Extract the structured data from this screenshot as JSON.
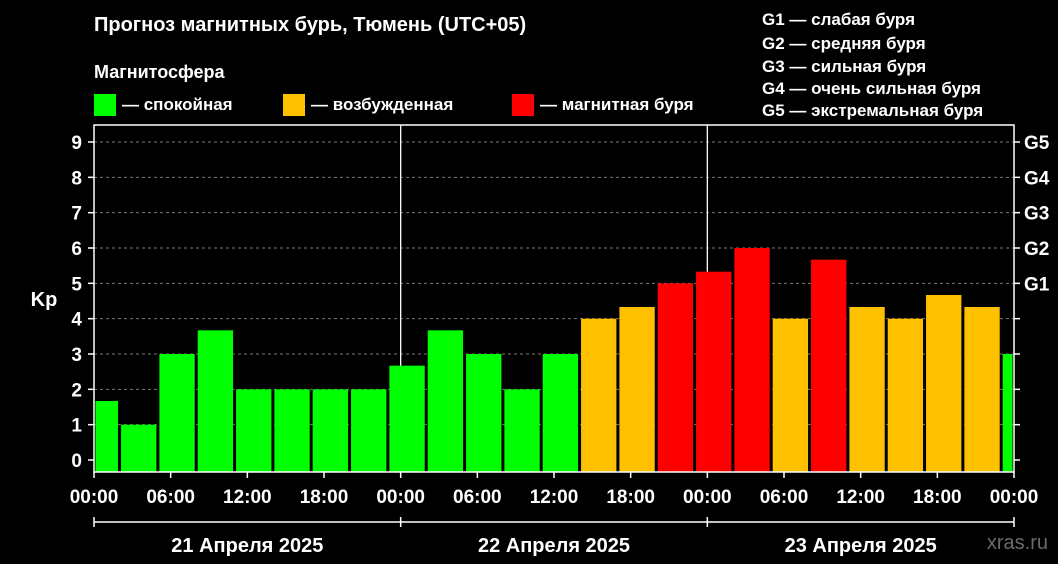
{
  "title": "Прогноз магнитных бурь, Тюмень (UTC+05)",
  "legend": {
    "heading": "Магнитосфера",
    "items": [
      {
        "label": "— спокойная",
        "color": "#00ff00"
      },
      {
        "label": "— возбужденная",
        "color": "#ffc000"
      },
      {
        "label": "— магнитная буря",
        "color": "#ff0000"
      }
    ]
  },
  "g_levels": [
    "G1 — слабая буря",
    "G2 — средняя буря",
    "G3 — сильная буря",
    "G4 — очень сильная буря",
    "G5 — экстремальная буря"
  ],
  "watermark": "xras.ru",
  "chart_data": {
    "type": "bar",
    "ylabel": "Kp",
    "ylim": [
      0,
      9
    ],
    "yticks": [
      0,
      1,
      2,
      3,
      4,
      5,
      6,
      7,
      8,
      9
    ],
    "right_ticks": [
      {
        "value": 5,
        "label": "G1"
      },
      {
        "value": 6,
        "label": "G2"
      },
      {
        "value": 7,
        "label": "G3"
      },
      {
        "value": 8,
        "label": "G4"
      },
      {
        "value": 9,
        "label": "G5"
      }
    ],
    "xticks": [
      "00:00",
      "06:00",
      "12:00",
      "18:00",
      "00:00",
      "06:00",
      "12:00",
      "18:00",
      "00:00",
      "06:00",
      "12:00",
      "18:00",
      "00:00"
    ],
    "days": [
      "21 Апреля 2025",
      "22 Апреля 2025",
      "23 Апреля 2025"
    ],
    "hours_total": 72,
    "grid": true,
    "colors": {
      "quiet": "#00ff00",
      "active": "#ffc000",
      "storm": "#ff0000"
    },
    "bars": [
      {
        "start": 0,
        "end": 2,
        "kp": 1.67,
        "level": "quiet"
      },
      {
        "start": 2,
        "end": 5,
        "kp": 1.0,
        "level": "quiet"
      },
      {
        "start": 5,
        "end": 8,
        "kp": 3.0,
        "level": "quiet"
      },
      {
        "start": 8,
        "end": 11,
        "kp": 3.67,
        "level": "quiet"
      },
      {
        "start": 11,
        "end": 14,
        "kp": 2.0,
        "level": "quiet"
      },
      {
        "start": 14,
        "end": 17,
        "kp": 2.0,
        "level": "quiet"
      },
      {
        "start": 17,
        "end": 20,
        "kp": 2.0,
        "level": "quiet"
      },
      {
        "start": 20,
        "end": 23,
        "kp": 2.0,
        "level": "quiet"
      },
      {
        "start": 23,
        "end": 26,
        "kp": 2.67,
        "level": "quiet"
      },
      {
        "start": 26,
        "end": 29,
        "kp": 3.67,
        "level": "quiet"
      },
      {
        "start": 29,
        "end": 32,
        "kp": 3.0,
        "level": "quiet"
      },
      {
        "start": 32,
        "end": 35,
        "kp": 2.0,
        "level": "quiet"
      },
      {
        "start": 35,
        "end": 38,
        "kp": 3.0,
        "level": "quiet"
      },
      {
        "start": 38,
        "end": 41,
        "kp": 4.0,
        "level": "active"
      },
      {
        "start": 41,
        "end": 44,
        "kp": 4.33,
        "level": "active"
      },
      {
        "start": 44,
        "end": 47,
        "kp": 5.0,
        "level": "storm"
      },
      {
        "start": 47,
        "end": 50,
        "kp": 5.33,
        "level": "storm"
      },
      {
        "start": 50,
        "end": 53,
        "kp": 6.0,
        "level": "storm"
      },
      {
        "start": 53,
        "end": 56,
        "kp": 4.0,
        "level": "active"
      },
      {
        "start": 56,
        "end": 59,
        "kp": 5.67,
        "level": "storm"
      },
      {
        "start": 59,
        "end": 62,
        "kp": 4.33,
        "level": "active"
      },
      {
        "start": 62,
        "end": 65,
        "kp": 4.0,
        "level": "active"
      },
      {
        "start": 65,
        "end": 68,
        "kp": 4.67,
        "level": "active"
      },
      {
        "start": 68,
        "end": 71,
        "kp": 4.33,
        "level": "active"
      },
      {
        "start": 71,
        "end": 72,
        "kp": 3.0,
        "level": "quiet"
      }
    ]
  }
}
